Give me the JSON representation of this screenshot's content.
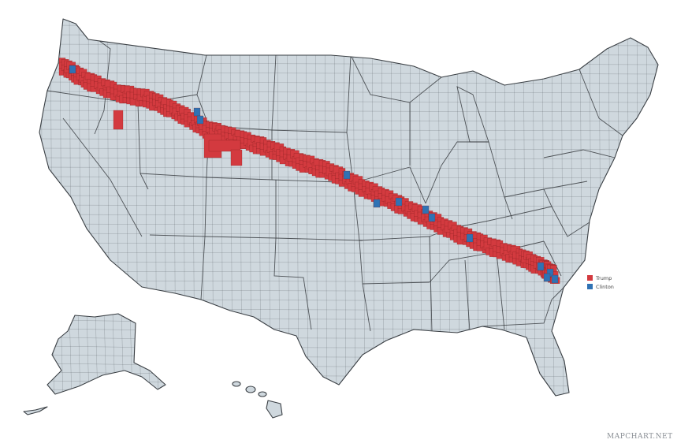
{
  "legend": {
    "items": [
      {
        "label": "Trump",
        "color": "#d33a3f"
      },
      {
        "label": "Clinton",
        "color": "#2f72b4"
      }
    ]
  },
  "credit": "MAPCHART.NET",
  "colors": {
    "land": "#cfd8de",
    "border": "#3a3f44",
    "trump": "#d33a3f",
    "clinton": "#2f72b4"
  },
  "map": {
    "region": "United States counties",
    "highlight": "diagonal band of counties from northwest Oregon to the South Carolina coast"
  }
}
